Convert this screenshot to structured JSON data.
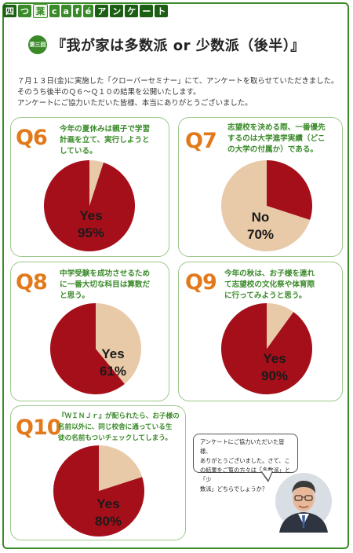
{
  "header": {
    "segments": [
      "四",
      "つ",
      "葉",
      "c",
      "a",
      "f",
      "é",
      "ア",
      "ン",
      "ケ",
      "ー",
      "ト"
    ]
  },
  "badge": "第三回",
  "title": "『我が家は多数派 or 少数派（後半）』",
  "intro": [
    "７月１３日(金)に実施した「クローバーセミナー」にて、アンケートを取らせていただきました。",
    "そのうち後半のＱ６～Ｑ１０の結果を公開いたします。",
    "アンケートにご協力いただいた皆様、本当にありがとうございました。"
  ],
  "colors": {
    "accent": "#a50f1a",
    "secondary": "#e8c9a8",
    "green": "#3a8a2a",
    "orange": "#e27a1b"
  },
  "questions": [
    {
      "num": "Q6",
      "text": [
        "今年の夏休みは親子で学習",
        "計画を立て、実行しようと",
        "している。"
      ],
      "answer": "Yes",
      "percent": "95%",
      "value": 95
    },
    {
      "num": "Q7",
      "text": [
        "志望校を決める際、一番優先",
        "するのは大学進学実績（どこ",
        "の大学の付属か）である。"
      ],
      "answer": "No",
      "percent": "70%",
      "value": 70
    },
    {
      "num": "Q8",
      "text": [
        "中学受験を成功させるため",
        "に一番大切な科目は算数だ",
        "と思う。"
      ],
      "answer": "Yes",
      "percent": "61%",
      "value": 61
    },
    {
      "num": "Q9",
      "text": [
        "今年の秋は、お子様を連れ",
        "て志望校の文化祭や体育際",
        "に行ってみようと思う。"
      ],
      "answer": "Yes",
      "percent": "90%",
      "value": 90
    },
    {
      "num": "Q10",
      "text": [
        "『ＷＩＮＪｒ』が配られたら、お子様の",
        "名前以外に、同じ校舎に通っている生",
        "徒の名前もついチェックしてしまう。"
      ],
      "answer": "Yes",
      "percent": "80%",
      "value": 80
    }
  ],
  "bubble": [
    "アンケートにご協力いただいた皆様、",
    "ありがとうございました。さて、こ",
    "の結果をご覧の方々は「多数派」と「少",
    "数派」どちらでしょうか？"
  ]
}
